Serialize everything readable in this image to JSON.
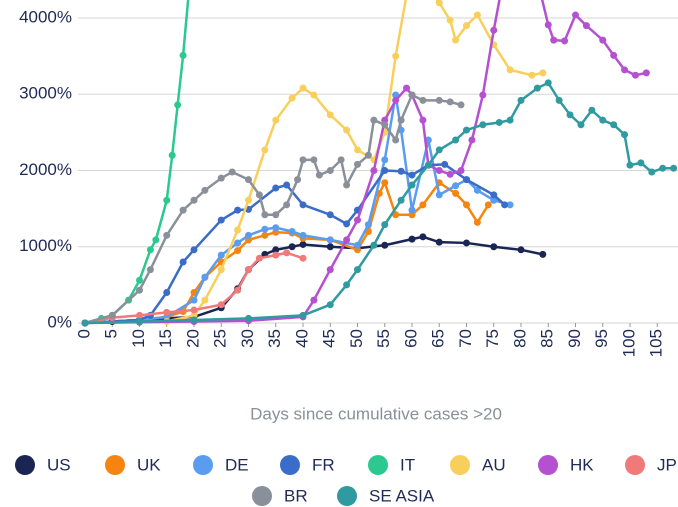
{
  "chart_data": {
    "type": "line",
    "x_label": "Days since cumulative cases >20",
    "xlim": [
      0,
      109
    ],
    "ylim": [
      0,
      4000
    ],
    "xticks": [
      0,
      5,
      10,
      15,
      20,
      25,
      30,
      35,
      40,
      45,
      50,
      55,
      60,
      65,
      70,
      75,
      80,
      85,
      90,
      95,
      100,
      105
    ],
    "yticks": [
      {
        "value": 0,
        "label": "0%"
      },
      {
        "value": 1000,
        "label": "1000%"
      },
      {
        "value": 2000,
        "label": "2000%"
      },
      {
        "value": 3000,
        "label": "3000%"
      },
      {
        "value": 4000,
        "label": "4000%"
      }
    ],
    "grid": true,
    "legend": "bottom",
    "series": [
      {
        "name": "US",
        "color": "#1b2553",
        "x": [
          0,
          5,
          10,
          15,
          20,
          25,
          28,
          30,
          33,
          35,
          38,
          40,
          45,
          50,
          55,
          60,
          62,
          65,
          70,
          75,
          80,
          84
        ],
        "values": [
          0,
          20,
          40,
          60,
          80,
          200,
          450,
          700,
          900,
          960,
          1000,
          1030,
          1000,
          980,
          1020,
          1100,
          1130,
          1060,
          1050,
          1000,
          960,
          900
        ]
      },
      {
        "name": "UK",
        "color": "#f5850f",
        "x": [
          0,
          10,
          15,
          18,
          20,
          22,
          25,
          28,
          30,
          33,
          35,
          38,
          40,
          45,
          50,
          52,
          54,
          55,
          57,
          60,
          62,
          65,
          68,
          70,
          72,
          74
        ],
        "values": [
          0,
          40,
          80,
          150,
          400,
          600,
          800,
          950,
          1090,
          1150,
          1190,
          1180,
          1110,
          1090,
          960,
          1200,
          1700,
          1840,
          1420,
          1420,
          1550,
          1840,
          1700,
          1550,
          1320,
          1550
        ]
      },
      {
        "name": "DE",
        "color": "#5a9cf0",
        "x": [
          0,
          10,
          15,
          20,
          22,
          25,
          28,
          30,
          33,
          35,
          38,
          40,
          45,
          50,
          52,
          55,
          57,
          58,
          60,
          63,
          65,
          68,
          70,
          72,
          75,
          78
        ],
        "values": [
          0,
          40,
          80,
          300,
          600,
          890,
          1050,
          1150,
          1230,
          1250,
          1200,
          1150,
          1090,
          1020,
          1290,
          2140,
          2990,
          2530,
          1480,
          2400,
          1680,
          1800,
          1880,
          1740,
          1610,
          1550
        ]
      },
      {
        "name": "FR",
        "color": "#3a6cc8",
        "x": [
          0,
          10,
          12,
          15,
          18,
          20,
          25,
          28,
          30,
          35,
          37,
          40,
          45,
          48,
          50,
          55,
          58,
          60,
          63,
          66,
          70,
          75,
          77
        ],
        "values": [
          0,
          40,
          100,
          400,
          800,
          960,
          1350,
          1480,
          1490,
          1770,
          1810,
          1550,
          1420,
          1300,
          1480,
          2000,
          1990,
          1940,
          2070,
          2080,
          1880,
          1680,
          1550
        ]
      },
      {
        "name": "IT",
        "color": "#2bc88f",
        "x": [
          0,
          3,
          5,
          8,
          10,
          12,
          13,
          15,
          16,
          17,
          18,
          19,
          20
        ],
        "values": [
          0,
          60,
          100,
          300,
          560,
          960,
          1090,
          1610,
          2200,
          2860,
          3510,
          4300,
          4700
        ]
      },
      {
        "name": "AU",
        "color": "#f9cf5c",
        "x": [
          0,
          15,
          20,
          22,
          25,
          28,
          30,
          33,
          35,
          38,
          40,
          42,
          45,
          48,
          50,
          53,
          55,
          57,
          59,
          61,
          63,
          65,
          67,
          68,
          70,
          72,
          75,
          78,
          82,
          84
        ],
        "values": [
          0,
          20,
          100,
          300,
          700,
          1220,
          1610,
          2270,
          2660,
          2950,
          3080,
          2990,
          2730,
          2530,
          2270,
          2140,
          2500,
          3500,
          4300,
          4500,
          4400,
          4200,
          3970,
          3710,
          3900,
          4040,
          3650,
          3320,
          3250,
          3280
        ]
      },
      {
        "name": "HK",
        "color": "#b550d0",
        "x": [
          0,
          10,
          20,
          30,
          40,
          42,
          45,
          48,
          50,
          53,
          55,
          57,
          59,
          60,
          62,
          63,
          65,
          67,
          69,
          71,
          73,
          75,
          77,
          80,
          83,
          85,
          86,
          88,
          90,
          92,
          95,
          97,
          99,
          101,
          103
        ],
        "values": [
          0,
          10,
          20,
          30,
          80,
          300,
          700,
          1090,
          1350,
          2000,
          2660,
          2920,
          3080,
          2990,
          2660,
          2070,
          2000,
          1950,
          2000,
          2400,
          2990,
          3840,
          4600,
          4700,
          4500,
          3910,
          3710,
          3700,
          4040,
          3900,
          3710,
          3510,
          3320,
          3250,
          3280
        ]
      },
      {
        "name": "JP",
        "color": "#f07a7a",
        "x": [
          0,
          5,
          10,
          15,
          20,
          25,
          28,
          30,
          32,
          35,
          37,
          40
        ],
        "values": [
          0,
          70,
          100,
          140,
          170,
          240,
          430,
          700,
          850,
          890,
          920,
          850
        ]
      },
      {
        "name": "BR",
        "color": "#8a9099",
        "x": [
          0,
          5,
          10,
          12,
          15,
          18,
          20,
          22,
          25,
          27,
          30,
          32,
          33,
          35,
          37,
          39,
          40,
          42,
          43,
          45,
          47,
          48,
          50,
          52,
          53,
          55,
          57,
          58,
          60,
          62,
          65,
          67,
          69
        ],
        "values": [
          0,
          100,
          430,
          700,
          1150,
          1480,
          1610,
          1740,
          1900,
          1980,
          1880,
          1680,
          1420,
          1420,
          1550,
          1880,
          2140,
          2140,
          1940,
          2000,
          2140,
          1810,
          2080,
          2200,
          2660,
          2600,
          2400,
          2660,
          2990,
          2920,
          2920,
          2900,
          2860
        ]
      },
      {
        "name": "SE ASIA",
        "color": "#2f9aa0",
        "x": [
          0,
          10,
          20,
          30,
          40,
          45,
          48,
          50,
          53,
          55,
          58,
          60,
          63,
          65,
          68,
          70,
          73,
          76,
          78,
          80,
          83,
          85,
          87,
          89,
          91,
          93,
          95,
          97,
          99,
          100,
          102,
          104,
          106,
          108
        ],
        "values": [
          0,
          20,
          40,
          60,
          100,
          240,
          500,
          700,
          1020,
          1290,
          1610,
          1810,
          2070,
          2270,
          2400,
          2530,
          2600,
          2630,
          2660,
          2920,
          3080,
          3150,
          2920,
          2730,
          2600,
          2790,
          2660,
          2600,
          2470,
          2070,
          2100,
          1980,
          2030,
          2030
        ]
      }
    ]
  }
}
